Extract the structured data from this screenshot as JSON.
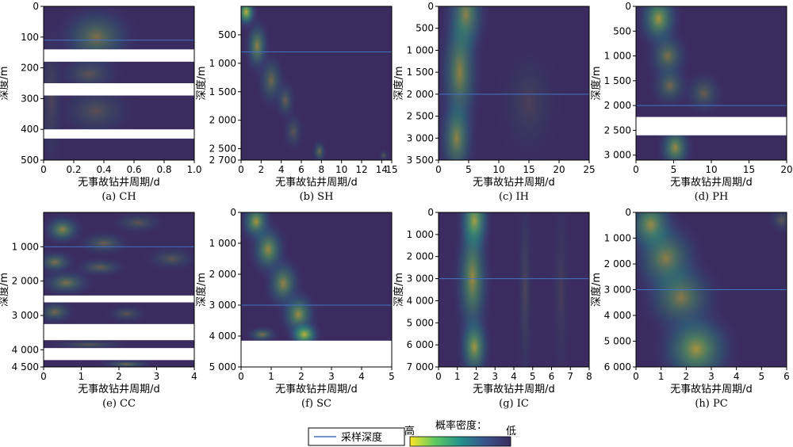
{
  "figure": {
    "legend": {
      "line_label": "采样深度",
      "colorbar_title": "概率密度：",
      "high_label": "高",
      "low_label": "低",
      "line_color": "#4472c4",
      "colormap": [
        "#fde725",
        "#5ec962",
        "#21918c",
        "#3b528b",
        "#3a2c5e"
      ]
    },
    "background_color": "#3a2c5e"
  },
  "chart_data": [
    {
      "type": "heatmap",
      "id": "a",
      "caption": "(a) CH",
      "xlabel": "无事故钻井周期/d",
      "ylabel": "深度/m",
      "xlim": [
        0,
        1.0
      ],
      "ylim": [
        500,
        0
      ],
      "xticks": [
        0,
        0.2,
        0.4,
        0.6,
        0.8,
        1.0
      ],
      "xtick_labels": [
        "0",
        "0.2",
        "0.4",
        "0.6",
        "0.8",
        "1.0"
      ],
      "yticks": [
        0,
        100,
        200,
        300,
        400,
        500
      ],
      "ytick_labels": [
        "0",
        "100",
        "200",
        "300",
        "400",
        "500"
      ],
      "sampling_depth": 110,
      "gaps": [
        [
          140,
          180
        ],
        [
          250,
          290
        ],
        [
          400,
          430
        ]
      ],
      "blobs": [
        {
          "x": 0.35,
          "y": 100,
          "sx": 0.15,
          "sy": 60,
          "a": 0.35
        },
        {
          "x": 0.3,
          "y": 220,
          "sx": 0.12,
          "sy": 35,
          "a": 0.2
        },
        {
          "x": 0.35,
          "y": 340,
          "sx": 0.15,
          "sy": 50,
          "a": 0.18
        },
        {
          "x": 0.05,
          "y": 300,
          "sx": 0.05,
          "sy": 150,
          "a": 0.12
        }
      ]
    },
    {
      "type": "heatmap",
      "id": "b",
      "caption": "(b) SH",
      "xlabel": "无事故钻井周期/d",
      "ylabel": "深度/m",
      "xlim": [
        0,
        15
      ],
      "ylim": [
        2700,
        0
      ],
      "xticks": [
        0,
        2,
        4,
        6,
        8,
        10,
        12,
        14,
        15
      ],
      "xtick_labels": [
        "0",
        "2",
        "4",
        "6",
        "8",
        "10",
        "12",
        "14",
        "15"
      ],
      "yticks": [
        500,
        1000,
        1500,
        2000,
        2500,
        2700
      ],
      "ytick_labels": [
        "500",
        "1 000",
        "1 500",
        "2 000",
        "2 500",
        "2 700"
      ],
      "sampling_depth": 800,
      "gaps": [],
      "blobs": [
        {
          "x": 0.5,
          "y": 100,
          "sx": 0.6,
          "sy": 160,
          "a": 0.7
        },
        {
          "x": 1.6,
          "y": 700,
          "sx": 0.7,
          "sy": 280,
          "a": 0.45
        },
        {
          "x": 3.0,
          "y": 1300,
          "sx": 0.8,
          "sy": 280,
          "a": 0.3
        },
        {
          "x": 4.4,
          "y": 1650,
          "sx": 0.6,
          "sy": 200,
          "a": 0.25
        },
        {
          "x": 5.2,
          "y": 2200,
          "sx": 0.6,
          "sy": 200,
          "a": 0.2
        },
        {
          "x": 7.8,
          "y": 2550,
          "sx": 0.4,
          "sy": 120,
          "a": 0.3
        },
        {
          "x": 14.2,
          "y": 2620,
          "sx": 0.3,
          "sy": 60,
          "a": 0.2
        }
      ]
    },
    {
      "type": "heatmap",
      "id": "c",
      "caption": "(c) IH",
      "xlabel": "无事故钻井周期/d",
      "ylabel": "深度/m",
      "xlim": [
        0,
        25
      ],
      "ylim": [
        3500,
        0
      ],
      "xticks": [
        0,
        5,
        10,
        15,
        20,
        25
      ],
      "xtick_labels": [
        "0",
        "5",
        "10",
        "15",
        "20",
        "25"
      ],
      "yticks": [
        0,
        500,
        1000,
        1500,
        2000,
        2500,
        3000,
        3500
      ],
      "ytick_labels": [
        "0",
        "500",
        "1 000",
        "1 500",
        "2 000",
        "2 500",
        "3 000",
        "3 500"
      ],
      "sampling_depth": 2000,
      "gaps": [],
      "blobs": [
        {
          "x": 4.5,
          "y": 200,
          "sx": 2.0,
          "sy": 600,
          "a": 0.5
        },
        {
          "x": 3.5,
          "y": 1500,
          "sx": 2.0,
          "sy": 900,
          "a": 0.45
        },
        {
          "x": 3.0,
          "y": 3000,
          "sx": 1.8,
          "sy": 600,
          "a": 0.45
        },
        {
          "x": 15,
          "y": 2200,
          "sx": 3,
          "sy": 800,
          "a": 0.1
        }
      ]
    },
    {
      "type": "heatmap",
      "id": "d",
      "caption": "(d) PH",
      "xlabel": "无事故钻井周期/d",
      "ylabel": "深度/m",
      "xlim": [
        0,
        20
      ],
      "ylim": [
        3100,
        0
      ],
      "xticks": [
        0,
        5,
        10,
        15,
        20
      ],
      "xtick_labels": [
        "0",
        "5",
        "10",
        "15",
        "20"
      ],
      "yticks": [
        0,
        500,
        1000,
        1500,
        2000,
        2500,
        3000
      ],
      "ytick_labels": [
        "0",
        "500",
        "1 000",
        "1 500",
        "2 000",
        "2 500",
        "3 000"
      ],
      "sampling_depth": 2000,
      "gaps": [
        [
          2230,
          2600
        ]
      ],
      "blobs": [
        {
          "x": 3.0,
          "y": 250,
          "sx": 1.6,
          "sy": 350,
          "a": 0.55
        },
        {
          "x": 4.2,
          "y": 1000,
          "sx": 1.6,
          "sy": 300,
          "a": 0.35
        },
        {
          "x": 4.5,
          "y": 1600,
          "sx": 1.5,
          "sy": 250,
          "a": 0.3
        },
        {
          "x": 9.0,
          "y": 1750,
          "sx": 1.5,
          "sy": 250,
          "a": 0.25
        },
        {
          "x": 5.2,
          "y": 2850,
          "sx": 1.3,
          "sy": 280,
          "a": 0.5
        }
      ]
    },
    {
      "type": "heatmap",
      "id": "e",
      "caption": "(e) CC",
      "xlabel": "无事故钻井周期/d",
      "ylabel": "深度/m",
      "xlim": [
        0,
        4
      ],
      "ylim": [
        4500,
        0
      ],
      "xticks": [
        0,
        1,
        2,
        3,
        4
      ],
      "xtick_labels": [
        "0",
        "1",
        "2",
        "3",
        "4"
      ],
      "yticks": [
        1000,
        2000,
        3000,
        4000,
        4500
      ],
      "ytick_labels": [
        "1 000",
        "2 000",
        "3 000",
        "4 000",
        "4 500"
      ],
      "sampling_depth": 1000,
      "gaps": [
        [
          2420,
          2620
        ],
        [
          3250,
          3720
        ],
        [
          3950,
          4300
        ]
      ],
      "blobs": [
        {
          "x": 0.5,
          "y": 500,
          "sx": 0.3,
          "sy": 250,
          "a": 0.45
        },
        {
          "x": 1.6,
          "y": 900,
          "sx": 0.4,
          "sy": 200,
          "a": 0.25
        },
        {
          "x": 2.5,
          "y": 300,
          "sx": 0.4,
          "sy": 180,
          "a": 0.2
        },
        {
          "x": 0.3,
          "y": 1450,
          "sx": 0.3,
          "sy": 200,
          "a": 0.35
        },
        {
          "x": 1.5,
          "y": 1600,
          "sx": 0.4,
          "sy": 160,
          "a": 0.25
        },
        {
          "x": 0.6,
          "y": 2050,
          "sx": 0.4,
          "sy": 220,
          "a": 0.35
        },
        {
          "x": 3.4,
          "y": 1350,
          "sx": 0.4,
          "sy": 200,
          "a": 0.2
        },
        {
          "x": 0.3,
          "y": 2900,
          "sx": 0.3,
          "sy": 200,
          "a": 0.3
        },
        {
          "x": 2.2,
          "y": 2950,
          "sx": 0.3,
          "sy": 150,
          "a": 0.2
        },
        {
          "x": 1.2,
          "y": 3850,
          "sx": 0.6,
          "sy": 80,
          "a": 0.2
        },
        {
          "x": 2.2,
          "y": 4420,
          "sx": 0.4,
          "sy": 70,
          "a": 0.3
        }
      ]
    },
    {
      "type": "heatmap",
      "id": "f",
      "caption": "(f) SC",
      "xlabel": "无事故钻井周期/d",
      "ylabel": "深度/m",
      "xlim": [
        0,
        5
      ],
      "ylim": [
        5000,
        0
      ],
      "xticks": [
        0,
        1,
        2,
        3,
        4,
        5
      ],
      "xtick_labels": [
        "0",
        "1",
        "2",
        "3",
        "4",
        "5"
      ],
      "yticks": [
        0,
        1000,
        2000,
        3000,
        4000,
        5000
      ],
      "ytick_labels": [
        "0",
        "1 000",
        "2 000",
        "3 000",
        "4 000",
        "5 000"
      ],
      "sampling_depth": 3000,
      "gaps": [
        [
          4150,
          5000
        ]
      ],
      "blobs": [
        {
          "x": 0.5,
          "y": 300,
          "sx": 0.3,
          "sy": 400,
          "a": 0.55
        },
        {
          "x": 0.9,
          "y": 1200,
          "sx": 0.35,
          "sy": 500,
          "a": 0.5
        },
        {
          "x": 1.4,
          "y": 2300,
          "sx": 0.35,
          "sy": 500,
          "a": 0.45
        },
        {
          "x": 1.9,
          "y": 3300,
          "sx": 0.35,
          "sy": 450,
          "a": 0.5
        },
        {
          "x": 2.1,
          "y": 3950,
          "sx": 0.3,
          "sy": 250,
          "a": 0.7
        },
        {
          "x": 0.7,
          "y": 3950,
          "sx": 0.3,
          "sy": 150,
          "a": 0.35
        }
      ]
    },
    {
      "type": "heatmap",
      "id": "g",
      "caption": "(g) IC",
      "xlabel": "无事故钻井周期/d",
      "ylabel": "深度/m",
      "xlim": [
        0,
        8
      ],
      "ylim": [
        7000,
        0
      ],
      "xticks": [
        0,
        1,
        2,
        3,
        4,
        5,
        6,
        7,
        8
      ],
      "xtick_labels": [
        "0",
        "1",
        "2",
        "3",
        "4",
        "5",
        "6",
        "7",
        "8"
      ],
      "yticks": [
        0,
        1000,
        2000,
        3000,
        4000,
        5000,
        6000,
        7000
      ],
      "ytick_labels": [
        "0",
        "1 000",
        "2 000",
        "3 000",
        "4 000",
        "5 000",
        "6 000",
        "7 000"
      ],
      "sampling_depth": 3000,
      "gaps": [],
      "blobs": [
        {
          "x": 1.9,
          "y": 400,
          "sx": 0.5,
          "sy": 900,
          "a": 0.7
        },
        {
          "x": 1.8,
          "y": 3000,
          "sx": 0.55,
          "sy": 1800,
          "a": 0.5
        },
        {
          "x": 1.9,
          "y": 6100,
          "sx": 0.5,
          "sy": 900,
          "a": 0.55
        },
        {
          "x": 4.6,
          "y": 3500,
          "sx": 0.25,
          "sy": 3000,
          "a": 0.12
        },
        {
          "x": 6.5,
          "y": 3500,
          "sx": 0.3,
          "sy": 3000,
          "a": 0.08
        }
      ]
    },
    {
      "type": "heatmap",
      "id": "h",
      "caption": "(h) PC",
      "xlabel": "无事故钻井周期/d",
      "ylabel": "深度/m",
      "xlim": [
        0,
        6
      ],
      "ylim": [
        6000,
        0
      ],
      "xticks": [
        0,
        1,
        2,
        3,
        4,
        5,
        6
      ],
      "xtick_labels": [
        "0",
        "1",
        "2",
        "3",
        "4",
        "5",
        "6"
      ],
      "yticks": [
        0,
        1000,
        2000,
        3000,
        4000,
        5000,
        6000
      ],
      "ytick_labels": [
        "0",
        "1 000",
        "2 000",
        "3 000",
        "4 000",
        "5 000",
        "6 000"
      ],
      "sampling_depth": 3000,
      "gaps": [],
      "blobs": [
        {
          "x": 0.6,
          "y": 500,
          "sx": 0.6,
          "sy": 700,
          "a": 0.55
        },
        {
          "x": 1.2,
          "y": 1800,
          "sx": 0.8,
          "sy": 900,
          "a": 0.45
        },
        {
          "x": 1.8,
          "y": 3300,
          "sx": 0.9,
          "sy": 900,
          "a": 0.4
        },
        {
          "x": 2.4,
          "y": 5300,
          "sx": 0.9,
          "sy": 900,
          "a": 0.55
        },
        {
          "x": 5.8,
          "y": 300,
          "sx": 0.3,
          "sy": 300,
          "a": 0.2
        }
      ]
    }
  ]
}
